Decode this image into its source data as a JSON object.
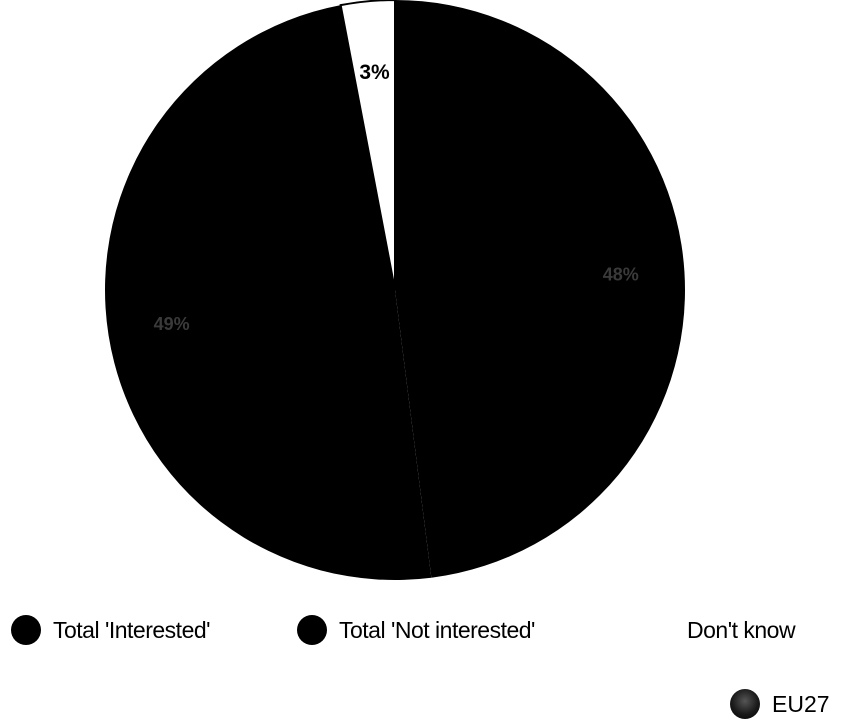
{
  "chart_data": {
    "type": "pie",
    "slices": [
      {
        "label": "Total 'Interested'",
        "value": 49,
        "value_label": "49%",
        "color": "#000000"
      },
      {
        "label": "Total 'Not interested'",
        "value": 48,
        "value_label": "48%",
        "color": "#000000"
      },
      {
        "label": "Don't know",
        "value": 3,
        "value_label": "3%",
        "color": "#ffffff"
      }
    ],
    "legend": [
      {
        "label": "Total 'Interested'",
        "color": "#000000"
      },
      {
        "label": "Total 'Not interested'",
        "color": "#000000"
      },
      {
        "label": "Don't know",
        "color": "#ffffff"
      }
    ],
    "legend_position": "bottom",
    "region_label": "EU27",
    "region_icon": "globe-icon",
    "start_angle": "12 o'clock, clockwise"
  }
}
